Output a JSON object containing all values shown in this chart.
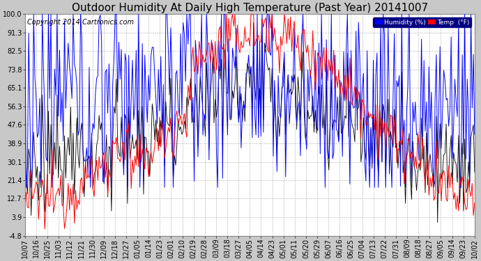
{
  "title": "Outdoor Humidity At Daily High Temperature (Past Year) 20141007",
  "copyright": "Copyright 2014 Cartronics.com",
  "legend_humidity": "Humidity (%)",
  "legend_temp": "Temp  (°F)",
  "background_color": "#c8c8c8",
  "plot_bg_color": "#ffffff",
  "humidity_color": "#0000ff",
  "temp_color": "#ff0000",
  "black_color": "#000000",
  "yticks": [
    100.0,
    91.3,
    82.5,
    73.8,
    65.1,
    56.3,
    47.6,
    38.9,
    30.1,
    21.4,
    12.7,
    3.9,
    -4.8
  ],
  "xtick_labels": [
    "10/07",
    "10/16",
    "10/25",
    "11/03",
    "11/12",
    "11/21",
    "11/30",
    "12/09",
    "12/18",
    "12/27",
    "01/05",
    "01/14",
    "01/23",
    "02/01",
    "02/10",
    "02/19",
    "02/28",
    "03/09",
    "03/18",
    "03/27",
    "04/05",
    "04/14",
    "04/23",
    "05/01",
    "05/11",
    "05/20",
    "05/29",
    "06/07",
    "06/16",
    "06/25",
    "07/04",
    "07/13",
    "07/22",
    "07/31",
    "08/09",
    "08/18",
    "08/27",
    "09/05",
    "09/14",
    "09/23",
    "10/02"
  ],
  "ymin": -4.8,
  "ymax": 100.0,
  "title_fontsize": 11,
  "axis_fontsize": 7,
  "copyright_fontsize": 7
}
